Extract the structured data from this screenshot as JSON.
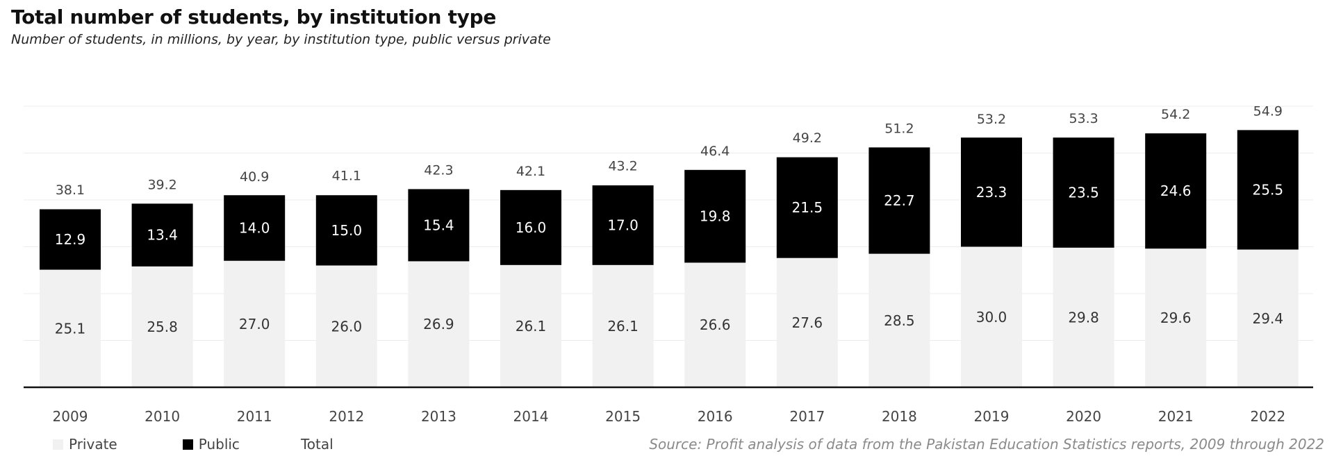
{
  "chart_data": {
    "type": "bar",
    "stacked": true,
    "title": "Total number of students, by institution type",
    "subtitle": "Number of students, in millions, by year, by institution type, public versus private",
    "xlabel": "",
    "ylabel": "",
    "ylim": [
      0,
      60
    ],
    "grid": true,
    "categories": [
      "2009",
      "2010",
      "2011",
      "2012",
      "2013",
      "2014",
      "2015",
      "2016",
      "2017",
      "2018",
      "2019",
      "2020",
      "2021",
      "2022"
    ],
    "series": [
      {
        "name": "Private",
        "color": "#f1f1f1",
        "label_color": "#333333",
        "values": [
          25.1,
          25.8,
          27.0,
          26.0,
          26.9,
          26.1,
          26.1,
          26.6,
          27.6,
          28.5,
          30.0,
          29.8,
          29.6,
          29.4
        ],
        "labels": [
          "25.1",
          "25.8",
          "27.0",
          "26.0",
          "26.9",
          "26.1",
          "26.1",
          "26.6",
          "27.6",
          "28.5",
          "30.0",
          "29.8",
          "29.6",
          "29.4"
        ]
      },
      {
        "name": "Public",
        "color": "#000000",
        "label_color": "#ffffff",
        "values": [
          12.9,
          13.4,
          14.0,
          15.0,
          15.4,
          16.0,
          17.0,
          19.8,
          21.5,
          22.7,
          23.3,
          23.5,
          24.6,
          25.5
        ],
        "labels": [
          "12.9",
          "13.4",
          "14.0",
          "15.0",
          "15.4",
          "16.0",
          "17.0",
          "19.8",
          "21.5",
          "22.7",
          "23.3",
          "23.5",
          "24.6",
          "25.5"
        ]
      }
    ],
    "totals": {
      "name": "Total",
      "values": [
        38.1,
        39.2,
        40.9,
        41.1,
        42.3,
        42.1,
        43.2,
        46.4,
        49.2,
        51.2,
        53.2,
        53.3,
        54.2,
        54.9
      ],
      "labels": [
        "38.1",
        "39.2",
        "40.9",
        "41.1",
        "42.3",
        "42.1",
        "43.2",
        "46.4",
        "49.2",
        "51.2",
        "53.2",
        "53.3",
        "54.2",
        "54.9"
      ]
    },
    "legend": {
      "position": "bottom-left",
      "items": [
        "Private",
        "Public",
        "Total"
      ]
    },
    "source": "Source: Profit analysis of data from the Pakistan Education Statistics reports, 2009 through 2022"
  },
  "colors": {
    "gridline": "#ececec",
    "baseline": "#111111",
    "axis_text": "#444444",
    "total_text": "#444444"
  }
}
